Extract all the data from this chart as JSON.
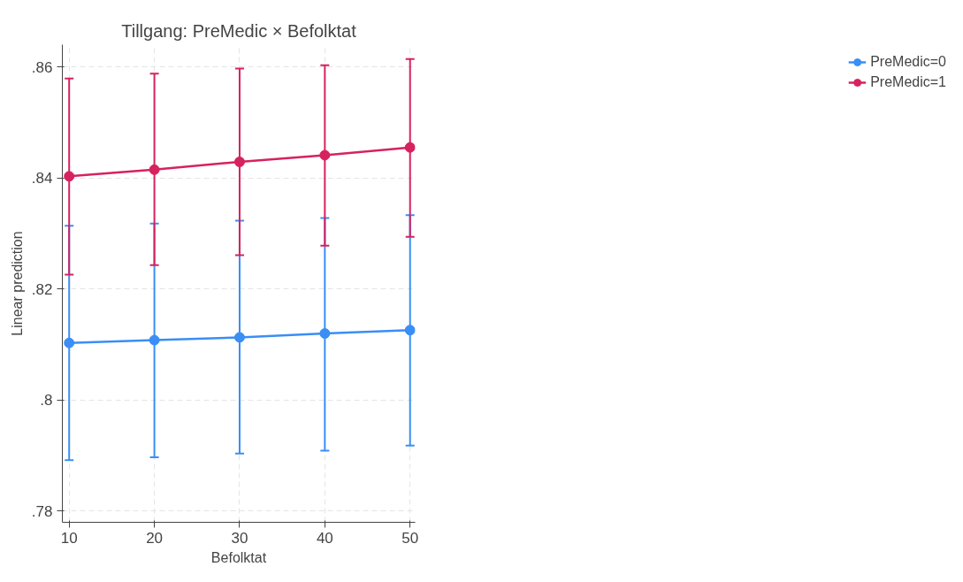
{
  "chart_data": {
    "type": "line",
    "title": "Tillgang: PreMedic × Befolktat",
    "xlabel": "Befolktat",
    "ylabel": "Linear prediction",
    "x": [
      10,
      20,
      30,
      40,
      50
    ],
    "series": [
      {
        "name": "PreMedic=0",
        "color": "#3a8ef5",
        "values": [
          0.8103,
          0.8108,
          0.8113,
          0.812,
          0.8126
        ],
        "errors": [
          [
            0.7892,
            0.8314
          ],
          [
            0.7897,
            0.8318
          ],
          [
            0.7904,
            0.8323
          ],
          [
            0.7909,
            0.8328
          ],
          [
            0.7918,
            0.8333
          ]
        ]
      },
      {
        "name": "PreMedic=1",
        "color": "#d6225e",
        "values": [
          0.8403,
          0.8415,
          0.8429,
          0.8441,
          0.8455
        ],
        "errors": [
          [
            0.8226,
            0.8579
          ],
          [
            0.8243,
            0.8588
          ],
          [
            0.8261,
            0.8597
          ],
          [
            0.8278,
            0.8603
          ],
          [
            0.8294,
            0.8614
          ]
        ]
      }
    ],
    "xlim": [
      9.2,
      50.6
    ],
    "ylim": [
      0.778,
      0.864
    ],
    "xticks": [
      10,
      20,
      30,
      40,
      50
    ],
    "yticks": [
      {
        "value": 0.78,
        "label": ".78"
      },
      {
        "value": 0.8,
        "label": ".8"
      },
      {
        "value": 0.82,
        "label": ".82"
      },
      {
        "value": 0.84,
        "label": ".84"
      },
      {
        "value": 0.86,
        "label": ".86"
      }
    ],
    "grid": true,
    "legend": "right",
    "marker": "circle",
    "line_style": "solid"
  }
}
